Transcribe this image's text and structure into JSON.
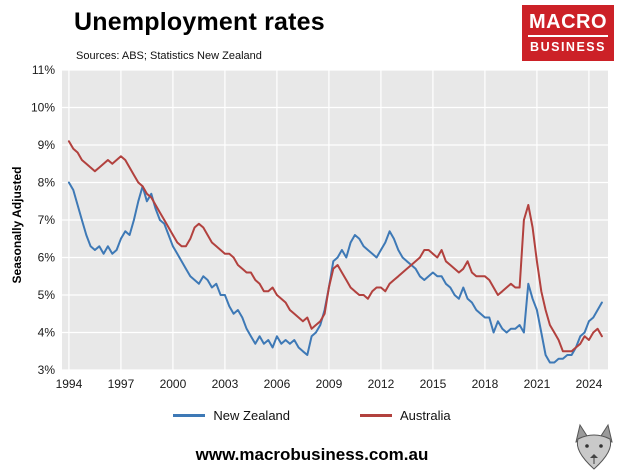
{
  "header": {
    "title": "Unemployment rates",
    "sources": "Sources: ABS; Statistics New Zealand"
  },
  "logo": {
    "line1": "MACRO",
    "line2": "BUSINESS",
    "color": "#cc2127"
  },
  "footer": {
    "website": "www.macrobusiness.com.au"
  },
  "chart_data": {
    "type": "line",
    "title": "Unemployment rates",
    "xlabel": "",
    "ylabel": "Seasonally Adjusted",
    "ylim": [
      3,
      11
    ],
    "xlim": [
      1993.6,
      2025.1
    ],
    "grid": true,
    "plot_bg": "#e8e8e8",
    "grid_color": "#ffffff",
    "legend_position": "bottom",
    "ytick_values": [
      3,
      4,
      5,
      6,
      7,
      8,
      9,
      10,
      11
    ],
    "ytick_labels": [
      "3%",
      "4%",
      "5%",
      "6%",
      "7%",
      "8%",
      "9%",
      "10%",
      "11%"
    ],
    "xtick_values": [
      1994,
      1997,
      2000,
      2003,
      2006,
      2009,
      2012,
      2015,
      2018,
      2021,
      2024
    ],
    "xtick_labels": [
      "1994",
      "1997",
      "2000",
      "2003",
      "2006",
      "2009",
      "2012",
      "2015",
      "2018",
      "2021",
      "2024"
    ],
    "x_start": 1994.0,
    "x_step": 0.25,
    "x_unit": "year (quarterly)",
    "series": [
      {
        "name": "New Zealand",
        "color": "#3e79b6",
        "values": [
          8.0,
          7.8,
          7.4,
          7.0,
          6.6,
          6.3,
          6.2,
          6.3,
          6.1,
          6.3,
          6.1,
          6.2,
          6.5,
          6.7,
          6.6,
          7.0,
          7.5,
          7.9,
          7.5,
          7.7,
          7.3,
          7.0,
          6.9,
          6.6,
          6.3,
          6.1,
          5.9,
          5.7,
          5.5,
          5.4,
          5.3,
          5.5,
          5.4,
          5.2,
          5.3,
          5.0,
          5.0,
          4.7,
          4.5,
          4.6,
          4.4,
          4.1,
          3.9,
          3.7,
          3.9,
          3.7,
          3.8,
          3.6,
          3.9,
          3.7,
          3.8,
          3.7,
          3.8,
          3.6,
          3.5,
          3.4,
          3.9,
          4.0,
          4.2,
          4.6,
          5.2,
          5.9,
          6.0,
          6.2,
          6.0,
          6.4,
          6.6,
          6.5,
          6.3,
          6.2,
          6.1,
          6.0,
          6.2,
          6.4,
          6.7,
          6.5,
          6.2,
          6.0,
          5.9,
          5.8,
          5.7,
          5.5,
          5.4,
          5.5,
          5.6,
          5.5,
          5.5,
          5.3,
          5.2,
          5.0,
          4.9,
          5.2,
          4.9,
          4.8,
          4.6,
          4.5,
          4.4,
          4.4,
          4.0,
          4.3,
          4.1,
          4.0,
          4.1,
          4.1,
          4.2,
          4.0,
          5.3,
          4.9,
          4.6,
          4.0,
          3.4,
          3.2,
          3.2,
          3.3,
          3.3,
          3.4,
          3.4,
          3.6,
          3.9,
          4.0,
          4.3,
          4.4,
          4.6,
          4.8
        ]
      },
      {
        "name": "Australia",
        "color": "#b2413e",
        "values": [
          9.1,
          8.9,
          8.8,
          8.6,
          8.5,
          8.4,
          8.3,
          8.4,
          8.5,
          8.6,
          8.5,
          8.6,
          8.7,
          8.6,
          8.4,
          8.2,
          8.0,
          7.9,
          7.7,
          7.6,
          7.4,
          7.2,
          7.0,
          6.8,
          6.6,
          6.4,
          6.3,
          6.3,
          6.5,
          6.8,
          6.9,
          6.8,
          6.6,
          6.4,
          6.3,
          6.2,
          6.1,
          6.1,
          6.0,
          5.8,
          5.7,
          5.6,
          5.6,
          5.4,
          5.3,
          5.1,
          5.1,
          5.2,
          5.0,
          4.9,
          4.8,
          4.6,
          4.5,
          4.4,
          4.3,
          4.4,
          4.1,
          4.2,
          4.3,
          4.5,
          5.2,
          5.7,
          5.8,
          5.6,
          5.4,
          5.2,
          5.1,
          5.0,
          5.0,
          4.9,
          5.1,
          5.2,
          5.2,
          5.1,
          5.3,
          5.4,
          5.5,
          5.6,
          5.7,
          5.8,
          5.9,
          6.0,
          6.2,
          6.2,
          6.1,
          6.0,
          6.2,
          5.9,
          5.8,
          5.7,
          5.6,
          5.7,
          5.9,
          5.6,
          5.5,
          5.5,
          5.5,
          5.4,
          5.2,
          5.0,
          5.1,
          5.2,
          5.3,
          5.2,
          5.2,
          7.0,
          7.4,
          6.8,
          5.9,
          5.1,
          4.6,
          4.2,
          4.0,
          3.8,
          3.5,
          3.5,
          3.5,
          3.6,
          3.7,
          3.9,
          3.8,
          4.0,
          4.1,
          3.9
        ]
      }
    ]
  }
}
